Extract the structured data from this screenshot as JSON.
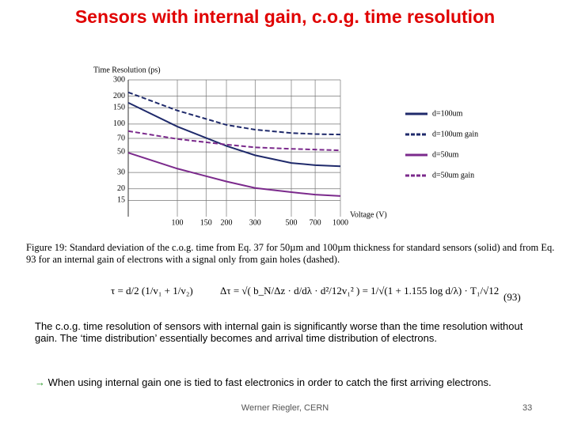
{
  "title": "Sensors with internal gain, c.o.g. time resolution",
  "chart_data": {
    "type": "line",
    "y_label": "Time Resolution (ps)",
    "x_label": "Voltage (V)",
    "x": [
      50,
      100,
      200,
      300,
      500,
      700,
      1000
    ],
    "xscale": "log",
    "yscale": "log",
    "xlim": [
      50,
      1000
    ],
    "ylim": [
      10,
      300
    ],
    "xticks": [
      100,
      150,
      200,
      300,
      500,
      700,
      1000
    ],
    "yticks": [
      15,
      20,
      30,
      50,
      70,
      100,
      150,
      200,
      300
    ],
    "grid": true,
    "legend": "right",
    "series": [
      {
        "name": "d=100um",
        "color": "#1f2a6b",
        "dash": false,
        "values": [
          170,
          94,
          58,
          46,
          38,
          36,
          35
        ]
      },
      {
        "name": "d=100um gain",
        "color": "#1f2a6b",
        "dash": true,
        "values": [
          220,
          140,
          98,
          87,
          80,
          78,
          77
        ]
      },
      {
        "name": "d=50um",
        "color": "#7b2a8c",
        "dash": false,
        "values": [
          49,
          33,
          24,
          20.4,
          18.4,
          17.3,
          16.7
        ]
      },
      {
        "name": "d=50um gain",
        "color": "#7b2a8c",
        "dash": true,
        "values": [
          84,
          69,
          60,
          56,
          54,
          53,
          52
        ]
      }
    ]
  },
  "caption": "Figure 19: Standard deviation of the c.o.g. time from Eq. 37 for 50µm and 100µm thickness for standard sensors (solid) and from Eq. 93 for an internal gain of electrons with a signal only from gain holes (dashed).",
  "equation": {
    "left": "τ = d/2 (1/v₁ + 1/v₂)",
    "right": "Δτ = √( b_N/Δz · d/dλ · d²/12v₁² ) = 1/√(1 + 1.155 log d/λ) · T₁/√12",
    "number": "(93)"
  },
  "body": [
    "The c.o.g. time resolution of sensors with internal gain is significantly worse than the time resolution without gain. The ‘time distribution’ essentially becomes and arrival time distribution of electrons.",
    "When using internal gain one is tied to fast electronics in order to catch the first arriving electrons."
  ],
  "footer": "Werner Riegler, CERN",
  "page_number": "33"
}
